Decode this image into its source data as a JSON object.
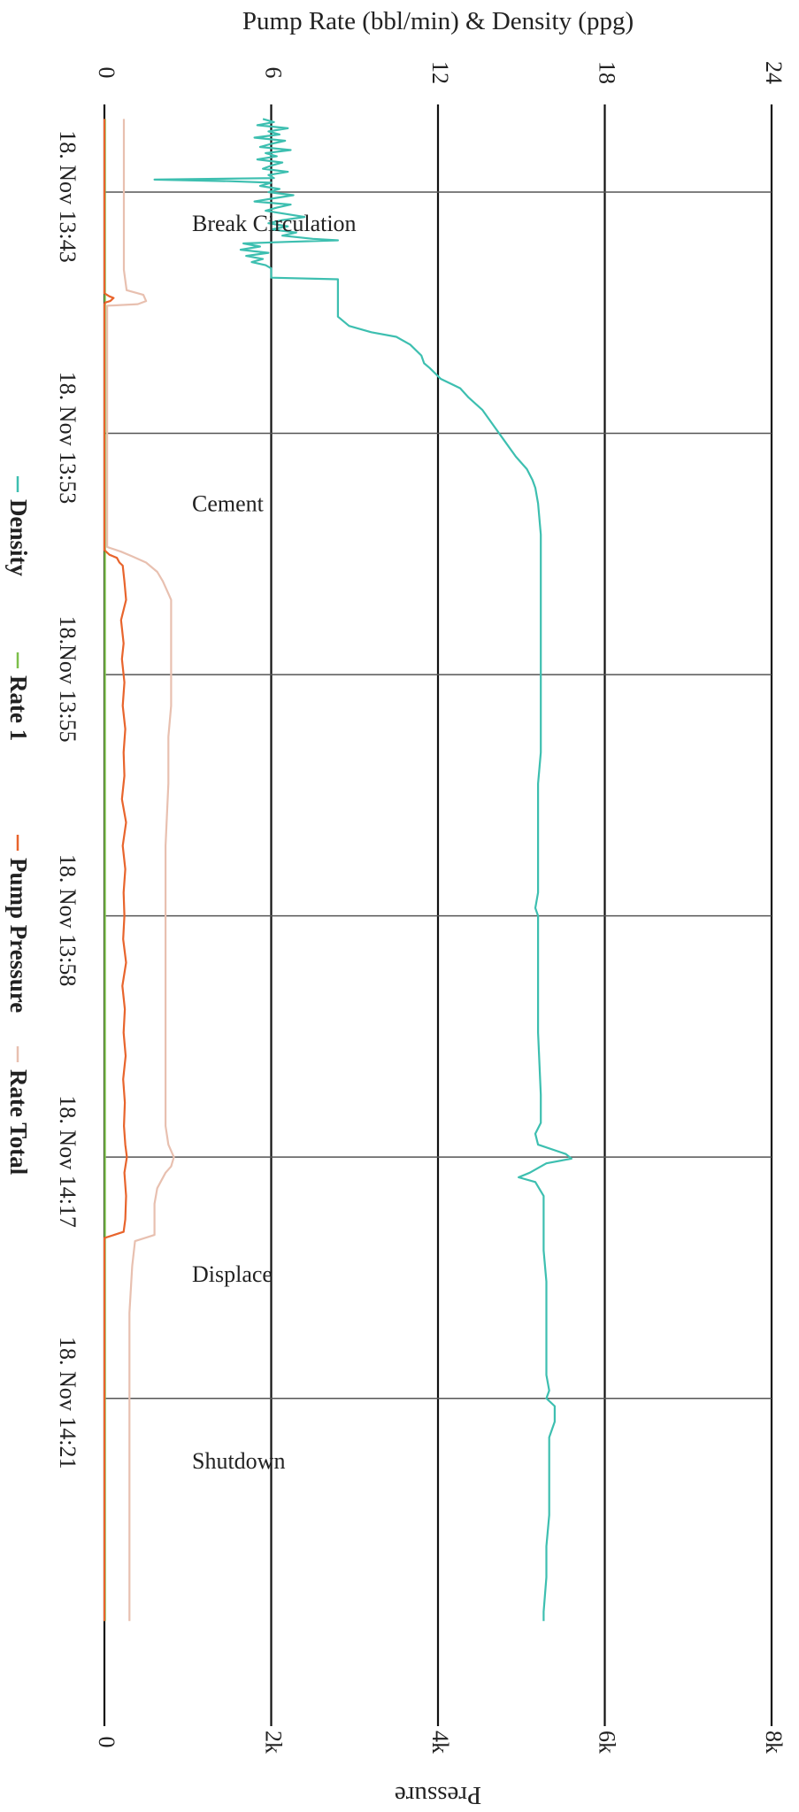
{
  "chart_data": {
    "type": "line",
    "orientation": "rotated-90-clockwise",
    "title": "",
    "top_axis_label": "Pump Rate (bbl/min) & Density (ppg)",
    "bottom_axis_label": "Pressure",
    "rate_density_range": [
      0,
      24
    ],
    "rate_density_ticks": [
      "0",
      "6",
      "12",
      "18",
      "24"
    ],
    "pressure_range": [
      0,
      8000
    ],
    "pressure_ticks": [
      "0",
      "2k",
      "4k",
      "6k",
      "8k"
    ],
    "time_range": [
      0,
      960
    ],
    "time_ticks": [
      {
        "t": 0,
        "label": "18. Nov 13:43"
      },
      {
        "t": 155,
        "label": "18. Nov 13:53"
      },
      {
        "t": 310,
        "label": "18.Nov 13:55"
      },
      {
        "t": 465,
        "label": "18. Nov 13:58"
      },
      {
        "t": 620,
        "label": "18. Nov 14:17"
      },
      {
        "t": 775,
        "label": "18. Nov 14:21"
      }
    ],
    "stage_annotations": [
      {
        "t": 25,
        "label": "Break Circulation"
      },
      {
        "t": 205,
        "label": "Cement"
      },
      {
        "t": 700,
        "label": "Displace"
      },
      {
        "t": 820,
        "label": "Shutdown"
      }
    ],
    "legend": [
      "Density",
      "Rate 1",
      "Pump Pressure",
      "Rate Total"
    ],
    "series": [
      {
        "name": "Density",
        "axis": "left",
        "color": "#3dbfb0",
        "points": [
          [
            -47,
            5.7
          ],
          [
            -45,
            6.1
          ],
          [
            -43,
            5.5
          ],
          [
            -41,
            6.6
          ],
          [
            -39,
            5.9
          ],
          [
            -37,
            6.3
          ],
          [
            -35,
            5.4
          ],
          [
            -33,
            6.5
          ],
          [
            -31,
            6.0
          ],
          [
            -29,
            5.6
          ],
          [
            -27,
            6.7
          ],
          [
            -25,
            5.8
          ],
          [
            -23,
            6.2
          ],
          [
            -21,
            5.5
          ],
          [
            -19,
            6.4
          ],
          [
            -17,
            6.0
          ],
          [
            -15,
            5.7
          ],
          [
            -13,
            6.6
          ],
          [
            -11,
            5.9
          ],
          [
            -9,
            6.1
          ],
          [
            -8,
            1.8
          ],
          [
            -7,
            4.5
          ],
          [
            -6,
            6.0
          ],
          [
            -4,
            5.6
          ],
          [
            -2,
            6.3
          ],
          [
            0,
            5.9
          ],
          [
            2,
            6.8
          ],
          [
            4,
            6.1
          ],
          [
            6,
            5.4
          ],
          [
            8,
            6.7
          ],
          [
            10,
            6.2
          ],
          [
            12,
            5.8
          ],
          [
            14,
            6.5
          ],
          [
            16,
            7.2
          ],
          [
            18,
            6.4
          ],
          [
            20,
            5.9
          ],
          [
            22,
            6.6
          ],
          [
            24,
            6.0
          ],
          [
            26,
            6.9
          ],
          [
            28,
            6.4
          ],
          [
            30,
            7.5
          ],
          [
            31,
            8.4
          ],
          [
            32,
            6.5
          ],
          [
            33,
            5.0
          ],
          [
            35,
            5.6
          ],
          [
            37,
            4.9
          ],
          [
            39,
            5.9
          ],
          [
            41,
            5.1
          ],
          [
            43,
            5.7
          ],
          [
            45,
            5.3
          ],
          [
            47,
            5.8
          ],
          [
            49,
            6.0
          ],
          [
            53,
            6.0
          ],
          [
            55,
            6.0
          ],
          [
            56,
            8.4
          ],
          [
            80,
            8.4
          ],
          [
            86,
            8.8
          ],
          [
            90,
            9.6
          ],
          [
            93,
            10.5
          ],
          [
            98,
            11.0
          ],
          [
            105,
            11.4
          ],
          [
            110,
            11.5
          ],
          [
            113,
            11.7
          ],
          [
            120,
            12.1
          ],
          [
            126,
            12.8
          ],
          [
            132,
            13.1
          ],
          [
            140,
            13.6
          ],
          [
            150,
            14.0
          ],
          [
            160,
            14.4
          ],
          [
            170,
            14.8
          ],
          [
            178,
            15.2
          ],
          [
            185,
            15.4
          ],
          [
            190,
            15.5
          ],
          [
            200,
            15.6
          ],
          [
            220,
            15.7
          ],
          [
            240,
            15.7
          ],
          [
            260,
            15.7
          ],
          [
            280,
            15.7
          ],
          [
            300,
            15.7
          ],
          [
            330,
            15.7
          ],
          [
            360,
            15.7
          ],
          [
            380,
            15.6
          ],
          [
            400,
            15.6
          ],
          [
            430,
            15.6
          ],
          [
            450,
            15.6
          ],
          [
            460,
            15.5
          ],
          [
            465,
            15.6
          ],
          [
            500,
            15.6
          ],
          [
            540,
            15.6
          ],
          [
            580,
            15.7
          ],
          [
            598,
            15.7
          ],
          [
            605,
            15.5
          ],
          [
            612,
            15.6
          ],
          [
            618,
            16.6
          ],
          [
            621,
            16.8
          ],
          [
            624,
            15.9
          ],
          [
            630,
            15.3
          ],
          [
            633,
            14.9
          ],
          [
            636,
            15.5
          ],
          [
            645,
            15.8
          ],
          [
            660,
            15.8
          ],
          [
            680,
            15.8
          ],
          [
            700,
            15.9
          ],
          [
            720,
            15.9
          ],
          [
            745,
            15.9
          ],
          [
            760,
            15.9
          ],
          [
            770,
            16.0
          ],
          [
            775,
            15.9
          ],
          [
            780,
            16.2
          ],
          [
            790,
            16.2
          ],
          [
            800,
            16.0
          ],
          [
            810,
            16.0
          ],
          [
            830,
            16.0
          ],
          [
            850,
            16.0
          ],
          [
            870,
            15.9
          ],
          [
            890,
            15.9
          ],
          [
            912,
            15.8
          ],
          [
            918,
            15.8
          ]
        ]
      },
      {
        "name": "Rate 1",
        "axis": "left",
        "color": "#7cbf4a",
        "points": [
          [
            -47,
            0.02
          ],
          [
            918,
            0.02
          ]
        ]
      },
      {
        "name": "Pump Pressure",
        "axis": "right",
        "color": "#e8642c",
        "points": [
          [
            -47,
            0
          ],
          [
            65,
            0
          ],
          [
            67,
            60
          ],
          [
            68,
            110
          ],
          [
            70,
            70
          ],
          [
            71,
            10
          ],
          [
            72,
            0
          ],
          [
            230,
            0
          ],
          [
            233,
            60
          ],
          [
            235,
            150
          ],
          [
            238,
            180
          ],
          [
            240,
            220
          ],
          [
            250,
            240
          ],
          [
            262,
            260
          ],
          [
            275,
            200
          ],
          [
            290,
            230
          ],
          [
            300,
            210
          ],
          [
            315,
            240
          ],
          [
            330,
            220
          ],
          [
            345,
            250
          ],
          [
            360,
            230
          ],
          [
            375,
            240
          ],
          [
            390,
            210
          ],
          [
            405,
            260
          ],
          [
            420,
            220
          ],
          [
            435,
            250
          ],
          [
            450,
            230
          ],
          [
            465,
            240
          ],
          [
            480,
            225
          ],
          [
            495,
            260
          ],
          [
            510,
            215
          ],
          [
            525,
            245
          ],
          [
            540,
            230
          ],
          [
            555,
            255
          ],
          [
            570,
            225
          ],
          [
            585,
            245
          ],
          [
            600,
            235
          ],
          [
            612,
            250
          ],
          [
            620,
            270
          ],
          [
            630,
            240
          ],
          [
            645,
            260
          ],
          [
            660,
            250
          ],
          [
            668,
            230
          ],
          [
            672,
            0
          ],
          [
            918,
            0
          ]
        ]
      },
      {
        "name": "Rate Total",
        "axis": "left",
        "color": "#e8c0b0",
        "points": [
          [
            -47,
            0.7
          ],
          [
            50,
            0.7
          ],
          [
            63,
            0.8
          ],
          [
            66,
            1.4
          ],
          [
            70,
            1.5
          ],
          [
            72,
            1.2
          ],
          [
            73,
            0.1
          ],
          [
            228,
            0.1
          ],
          [
            231,
            0.6
          ],
          [
            234,
            1.0
          ],
          [
            238,
            1.5
          ],
          [
            244,
            1.9
          ],
          [
            250,
            2.1
          ],
          [
            258,
            2.3
          ],
          [
            262,
            2.4
          ],
          [
            275,
            2.4
          ],
          [
            290,
            2.4
          ],
          [
            310,
            2.4
          ],
          [
            330,
            2.4
          ],
          [
            350,
            2.3
          ],
          [
            380,
            2.3
          ],
          [
            420,
            2.2
          ],
          [
            460,
            2.2
          ],
          [
            500,
            2.2
          ],
          [
            540,
            2.2
          ],
          [
            575,
            2.2
          ],
          [
            600,
            2.2
          ],
          [
            612,
            2.3
          ],
          [
            620,
            2.5
          ],
          [
            626,
            2.4
          ],
          [
            630,
            2.2
          ],
          [
            640,
            1.9
          ],
          [
            650,
            1.8
          ],
          [
            658,
            1.8
          ],
          [
            670,
            1.8
          ],
          [
            674,
            1.1
          ],
          [
            690,
            1.0
          ],
          [
            720,
            0.9
          ],
          [
            760,
            0.9
          ],
          [
            800,
            0.9
          ],
          [
            850,
            0.9
          ],
          [
            918,
            0.9
          ]
        ]
      }
    ]
  }
}
